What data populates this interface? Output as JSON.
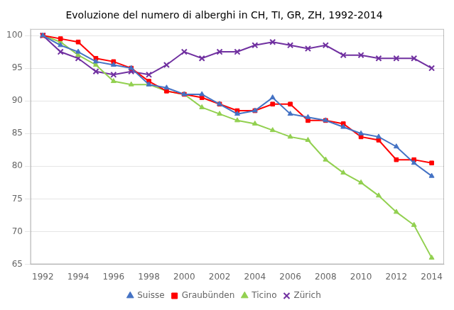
{
  "chart_data": {
    "type": "line",
    "title": "Evoluzione del numero di alberghi in CH, TI, GR, ZH, 1992-2014",
    "x": [
      1992,
      1993,
      1994,
      1995,
      1996,
      1997,
      1998,
      1999,
      2000,
      2001,
      2002,
      2003,
      2004,
      2005,
      2006,
      2007,
      2008,
      2009,
      2010,
      2011,
      2012,
      2013,
      2014
    ],
    "series": [
      {
        "name": "Suisse",
        "color": "#4472C4",
        "marker": "triangle",
        "values": [
          100,
          98.5,
          97.5,
          96.0,
          95.5,
          95.0,
          92.5,
          92.0,
          91.0,
          91.0,
          89.5,
          88.0,
          88.5,
          90.5,
          88.0,
          87.5,
          87.0,
          86.0,
          85.0,
          84.5,
          83.0,
          80.5,
          78.5
        ]
      },
      {
        "name": "Graubünden",
        "color": "#FF0000",
        "marker": "square",
        "values": [
          100,
          99.5,
          99.0,
          96.5,
          96.0,
          95.0,
          93.0,
          91.5,
          91.0,
          90.5,
          89.5,
          88.5,
          88.5,
          89.5,
          89.5,
          87.0,
          87.0,
          86.5,
          84.5,
          84.0,
          81.0,
          81.0,
          80.5
        ]
      },
      {
        "name": "Ticino",
        "color": "#92D050",
        "marker": "triangle",
        "values": [
          100,
          99.0,
          97.0,
          95.5,
          93.0,
          92.5,
          92.5,
          91.5,
          91.0,
          89.0,
          88.0,
          87.0,
          86.5,
          85.5,
          84.5,
          84.0,
          81.0,
          79.0,
          77.5,
          75.5,
          73.0,
          71.0,
          66.0
        ]
      },
      {
        "name": "Zürich",
        "color": "#7030A0",
        "marker": "x",
        "values": [
          100,
          97.5,
          96.5,
          94.5,
          94.0,
          94.5,
          94.0,
          95.5,
          97.5,
          96.5,
          97.5,
          97.5,
          98.5,
          99.0,
          98.5,
          98.0,
          98.5,
          97.0,
          97.0,
          96.5,
          96.5,
          96.5,
          95.0
        ]
      }
    ],
    "xlim": [
      1991.3,
      2014.7
    ],
    "xticks": [
      1992,
      1994,
      1996,
      1998,
      2000,
      2002,
      2004,
      2006,
      2008,
      2010,
      2012,
      2014
    ],
    "ylim": [
      65,
      101
    ],
    "yticks": [
      65,
      70,
      75,
      80,
      85,
      90,
      95,
      100
    ],
    "grid": "y",
    "legend": "bottom"
  }
}
